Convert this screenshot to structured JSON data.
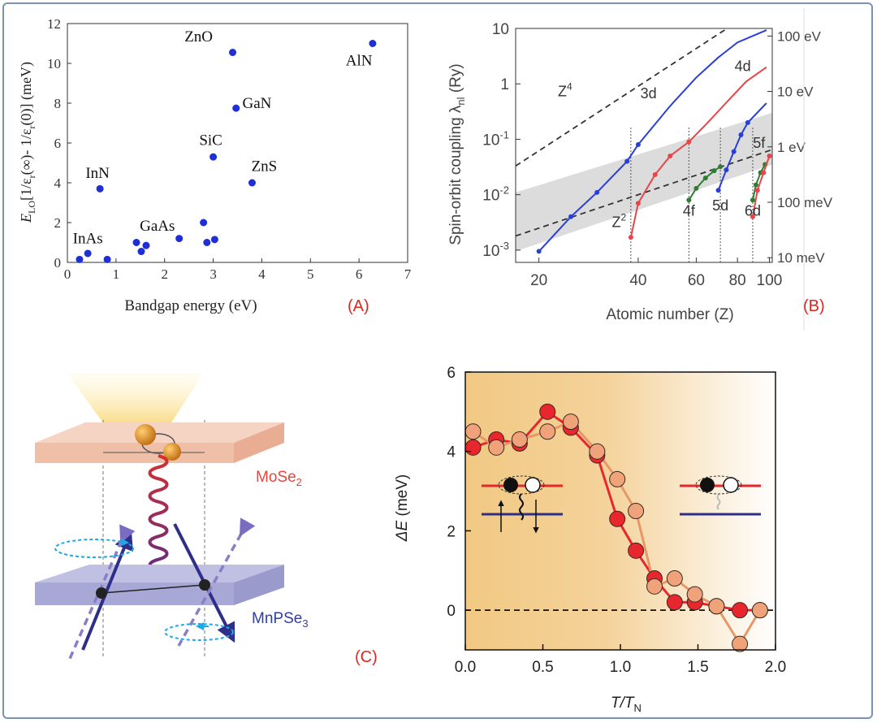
{
  "panel_labels": {
    "a": "(A)",
    "b": "(B)",
    "c": "(C)"
  },
  "colors": {
    "accent_red": "#e0261e",
    "blue": "#1f2fd6",
    "frame": "#7a93b5"
  },
  "chart_data": [
    {
      "id": "A",
      "type": "scatter",
      "xlabel": "Bandgap energy (eV)",
      "ylabel_parts": {
        "e": "E",
        "lo": "LO",
        "pre": "[1/ε",
        "r1": "r",
        "mid": "(∞)- 1/ε",
        "r2": "r",
        "post": "(0)]  (meV)"
      },
      "xlim": [
        0,
        7
      ],
      "ylim": [
        0,
        12
      ],
      "xticks": [
        "0",
        "1",
        "2",
        "3",
        "4",
        "5",
        "6",
        "7"
      ],
      "yticks": [
        "0",
        "2",
        "4",
        "6",
        "8",
        "10",
        "12"
      ],
      "point_color": "#1f2fd6",
      "points": [
        {
          "x": 0.25,
          "y": 0.15
        },
        {
          "x": 0.42,
          "y": 0.45
        },
        {
          "x": 0.67,
          "y": 3.7
        },
        {
          "x": 0.82,
          "y": 0.15
        },
        {
          "x": 1.42,
          "y": 1.0
        },
        {
          "x": 1.52,
          "y": 0.55
        },
        {
          "x": 1.62,
          "y": 0.85
        },
        {
          "x": 2.3,
          "y": 1.2
        },
        {
          "x": 2.8,
          "y": 2.0
        },
        {
          "x": 2.87,
          "y": 1.0
        },
        {
          "x": 3.0,
          "y": 5.3
        },
        {
          "x": 3.03,
          "y": 1.15
        },
        {
          "x": 3.4,
          "y": 10.55
        },
        {
          "x": 3.47,
          "y": 7.75
        },
        {
          "x": 3.8,
          "y": 4.0
        },
        {
          "x": 6.28,
          "y": 11.0
        }
      ],
      "annotations": [
        {
          "text": "InAs",
          "x": 0.42,
          "y": 0.95
        },
        {
          "text": "InN",
          "x": 0.62,
          "y": 4.25
        },
        {
          "text": "GaAs",
          "x": 1.85,
          "y": 1.6
        },
        {
          "text": "SiC",
          "x": 2.95,
          "y": 5.9
        },
        {
          "text": "ZnS",
          "x": 4.05,
          "y": 4.6
        },
        {
          "text": "GaN",
          "x": 3.9,
          "y": 7.75
        },
        {
          "text": "ZnO",
          "x": 2.7,
          "y": 11.1
        },
        {
          "text": "AlN",
          "x": 6.0,
          "y": 9.9
        }
      ]
    },
    {
      "id": "B",
      "type": "line",
      "xscale": "log",
      "yscale": "log",
      "xlabel": "Atomic number (Z)",
      "ylabel_main": "Spin-orbit coupling λ",
      "ylabel_sub": "nl",
      "ylabel_unit": " (Ry)",
      "xlim": [
        17,
        102
      ],
      "ylim": [
        0.0006,
        10
      ],
      "xticks": [
        {
          "label": "20",
          "v": 20
        },
        {
          "label": "40",
          "v": 40
        },
        {
          "label": "60",
          "v": 60
        },
        {
          "label": "80",
          "v": 80
        },
        {
          "label": "100",
          "v": 100
        }
      ],
      "yticks": [
        {
          "label": "10",
          "sup": "-3",
          "v": 0.001
        },
        {
          "label": "10",
          "sup": "-2",
          "v": 0.01
        },
        {
          "label": "10",
          "sup": "-1",
          "v": 0.1
        },
        {
          "label": "1",
          "sup": "",
          "v": 1
        },
        {
          "label": "10",
          "sup": "",
          "v": 10
        }
      ],
      "right_ticks": [
        {
          "label": "10 meV",
          "v": 0.00073
        },
        {
          "label": "100 meV",
          "v": 0.0073
        },
        {
          "label": "1 eV",
          "v": 0.073
        },
        {
          "label": "10 eV",
          "v": 0.73
        },
        {
          "label": "100 eV",
          "v": 7.3
        }
      ],
      "band": {
        "lower": [
          [
            17,
            0.00095
          ],
          [
            102,
            0.035
          ]
        ],
        "upper": [
          [
            17,
            0.011
          ],
          [
            102,
            0.3
          ]
        ]
      },
      "series": [
        {
          "name": "3d",
          "color": "#2a3fd6",
          "points": [
            [
              20,
              0.00095
            ],
            [
              25,
              0.004
            ],
            [
              30,
              0.011
            ],
            [
              37,
              0.04
            ],
            [
              40,
              0.08
            ],
            [
              50,
              0.4
            ],
            [
              60,
              1.3
            ],
            [
              70,
              3.0
            ],
            [
              80,
              5.6
            ],
            [
              98,
              9.3
            ]
          ],
          "marker_range": [
            0,
            4
          ]
        },
        {
          "name": "4d",
          "color": "#e8454a",
          "points": [
            [
              38,
              0.0017
            ],
            [
              40,
              0.007
            ],
            [
              45,
              0.023
            ],
            [
              50,
              0.05
            ],
            [
              57,
              0.09
            ],
            [
              65,
              0.2
            ],
            [
              75,
              0.5
            ],
            [
              85,
              1.1
            ],
            [
              98,
              2.0
            ]
          ],
          "marker_range": [
            0,
            4
          ]
        },
        {
          "name": "4f",
          "color": "#2f7d32",
          "points": [
            [
              57,
              0.008
            ],
            [
              60,
              0.013
            ],
            [
              64,
              0.02
            ],
            [
              68,
              0.027
            ],
            [
              71,
              0.032
            ]
          ],
          "marker_range": [
            0,
            4
          ]
        },
        {
          "name": "5d",
          "color": "#2a3fd6",
          "points": [
            [
              70,
              0.012
            ],
            [
              74,
              0.028
            ],
            [
              78,
              0.06
            ],
            [
              82,
              0.12
            ],
            [
              86,
              0.2
            ],
            [
              98,
              0.45
            ]
          ],
          "marker_range": [
            0,
            4
          ]
        },
        {
          "name": "5f",
          "color": "#2f7d32",
          "points": [
            [
              89,
              0.008
            ],
            [
              91,
              0.015
            ],
            [
              94,
              0.025
            ],
            [
              97,
              0.035
            ]
          ],
          "marker_range": [
            0,
            3
          ]
        },
        {
          "name": "6d",
          "color": "#e8454a",
          "points": [
            [
              89,
              0.004
            ],
            [
              92,
              0.012
            ],
            [
              96,
              0.025
            ],
            [
              100,
              0.05
            ]
          ],
          "marker_range": [
            0,
            3
          ]
        }
      ],
      "ref_lines": [
        {
          "name": "Z⁴",
          "points": [
            [
              17,
              0.033
            ],
            [
              78,
              12
            ]
          ]
        },
        {
          "name": "Z²",
          "points": [
            [
              17,
              0.0018
            ],
            [
              102,
              0.065
            ]
          ]
        }
      ],
      "vlines": [
        38,
        57,
        71,
        89
      ],
      "labels": [
        {
          "text": "Z",
          "sup": "4",
          "x": 24,
          "y": 0.6
        },
        {
          "text": "Z",
          "sup": "2",
          "x": 35,
          "y": 0.0026
        },
        {
          "text": "3d",
          "x": 43,
          "y": 0.55
        },
        {
          "text": "4d",
          "x": 83,
          "y": 1.7
        },
        {
          "text": "4f",
          "x": 57,
          "y": 0.0042
        },
        {
          "text": "5d",
          "x": 71,
          "y": 0.0052
        },
        {
          "text": "6d",
          "x": 89,
          "y": 0.0042
        },
        {
          "text": "5f",
          "x": 93,
          "y": 0.07
        }
      ]
    },
    {
      "id": "D",
      "type": "line",
      "xlabel_main": "T",
      "xlabel_mid": "/T",
      "xlabel_sub": "N",
      "ylabel_main": "ΔE",
      "ylabel_unit": " (meV)",
      "xlim": [
        0,
        2.0
      ],
      "ylim": [
        -1,
        6
      ],
      "xticks": [
        "0.0",
        "0.5",
        "1.0",
        "1.5",
        "2.0"
      ],
      "yticks": [
        "0",
        "2",
        "4",
        "6"
      ],
      "series": [
        {
          "name": "red",
          "color": "#e8262e",
          "fill": "#e8262e",
          "points": [
            [
              0.05,
              4.1
            ],
            [
              0.2,
              4.3
            ],
            [
              0.35,
              4.2
            ],
            [
              0.53,
              5.0
            ],
            [
              0.68,
              4.6
            ],
            [
              0.85,
              3.9
            ],
            [
              0.98,
              2.3
            ],
            [
              1.1,
              1.5
            ],
            [
              1.22,
              0.8
            ],
            [
              1.35,
              0.2
            ],
            [
              1.48,
              0.2
            ],
            [
              1.62,
              0.1
            ],
            [
              1.77,
              0.0
            ],
            [
              1.9,
              0.0
            ]
          ]
        },
        {
          "name": "orange",
          "color": "#e89868",
          "fill": "#f0a37a",
          "points": [
            [
              0.05,
              4.5
            ],
            [
              0.2,
              4.1
            ],
            [
              0.35,
              4.3
            ],
            [
              0.53,
              4.5
            ],
            [
              0.68,
              4.75
            ],
            [
              0.85,
              4.0
            ],
            [
              0.98,
              3.3
            ],
            [
              1.1,
              2.5
            ],
            [
              1.22,
              0.6
            ],
            [
              1.35,
              0.8
            ],
            [
              1.48,
              0.4
            ],
            [
              1.62,
              0.1
            ],
            [
              1.77,
              -0.85
            ],
            [
              1.9,
              0.0
            ]
          ]
        }
      ],
      "zero_line": 0
    }
  ],
  "diagram": {
    "top_layer": "MoSe",
    "top_layer_sub": "2",
    "bottom_layer": "MnPSe",
    "bottom_layer_sub": "3"
  }
}
